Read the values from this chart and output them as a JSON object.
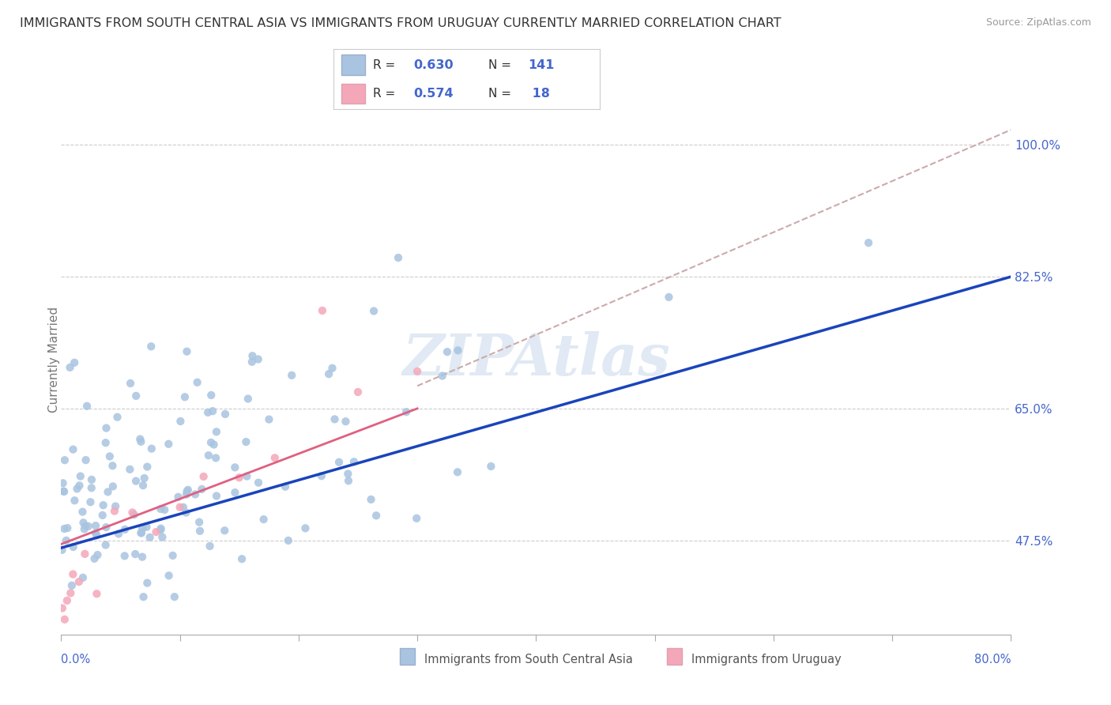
{
  "title": "IMMIGRANTS FROM SOUTH CENTRAL ASIA VS IMMIGRANTS FROM URUGUAY CURRENTLY MARRIED CORRELATION CHART",
  "source": "Source: ZipAtlas.com",
  "ylabel": "Currently Married",
  "yticks": [
    47.5,
    65.0,
    82.5,
    100.0
  ],
  "xlim": [
    0.0,
    80.0
  ],
  "ylim": [
    35.0,
    108.0
  ],
  "blue_R": 0.63,
  "blue_N": 141,
  "pink_R": 0.574,
  "pink_N": 18,
  "blue_color": "#a8c4e0",
  "pink_color": "#f4a7b9",
  "blue_line_color": "#1a44bb",
  "pink_line_color": "#e06080",
  "dashed_line_color": "#ccaaaa",
  "legend_label_blue": "Immigrants from South Central Asia",
  "legend_label_pink": "Immigrants from Uruguay",
  "watermark": "ZIPAtlas",
  "title_fontsize": 11.5,
  "axis_label_color": "#4466cc",
  "tick_label_color": "#4466cc",
  "background_color": "#ffffff",
  "blue_line_y0": 46.5,
  "blue_line_y1": 82.5,
  "pink_line_x0": 0.0,
  "pink_line_x1": 30.0,
  "pink_line_y0": 47.0,
  "pink_line_y1": 65.0,
  "dashed_x0": 30.0,
  "dashed_x1": 80.0,
  "dashed_y0": 68.0,
  "dashed_y1": 102.0
}
